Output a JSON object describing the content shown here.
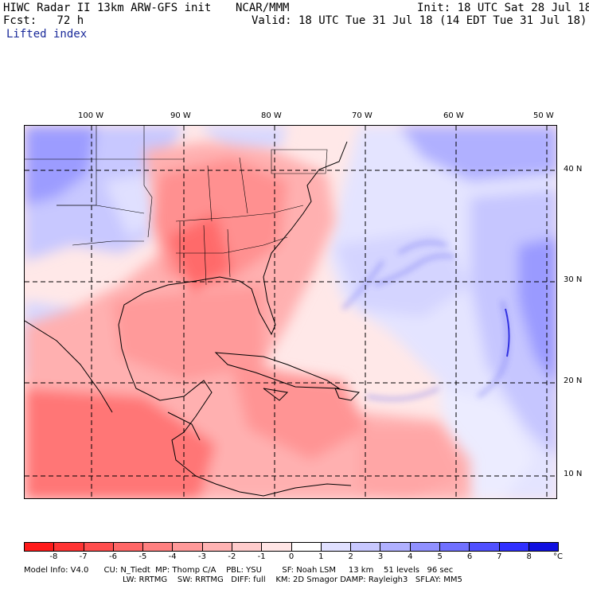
{
  "header": {
    "title_left": "HIWC Radar II 13km ARW-GFS init",
    "org": "NCAR/MMM",
    "init": "Init: 18 UTC Sat 28 Jul 18",
    "fcst": "Fcst:   72 h",
    "valid": "Valid: 18 UTC Tue 31 Jul 18 (14 EDT Tue 31 Jul 18)",
    "field": "Lifted index"
  },
  "map": {
    "lon_labels": [
      "100 W",
      "90 W",
      "80 W",
      "70 W",
      "60 W",
      "50 W"
    ],
    "lon_values": [
      100,
      90,
      80,
      70,
      60,
      50
    ],
    "lat_labels": [
      "40 N",
      "30 N",
      "20 N",
      "10 N"
    ],
    "lat_values": [
      40,
      30,
      20,
      10
    ]
  },
  "colorbar": {
    "ticks": [
      "-8",
      "-7",
      "-6",
      "-5",
      "-4",
      "-3",
      "-2",
      "-1",
      "0",
      "1",
      "2",
      "3",
      "4",
      "5",
      "6",
      "7",
      "8"
    ],
    "unit": "°C",
    "colors": [
      "#ff1a1a",
      "#ff3333",
      "#ff4d4d",
      "#ff6666",
      "#ff8080",
      "#ff9999",
      "#ffb3b3",
      "#ffcccc",
      "#ffe5e5",
      "#ffffff",
      "#e0e0ff",
      "#c8c8ff",
      "#b0b0ff",
      "#9090ff",
      "#7070ff",
      "#5050ff",
      "#3030ff",
      "#1010e0"
    ]
  },
  "footer": {
    "line1": "Model Info: V4.0      CU: N_Tiedt  MP: Thomp C/A    PBL: YSU        SF: Noah LSM     13 km    51 levels   96 sec",
    "line2": "LW: RRTMG    SW: RRTMG   DIFF: full    KM: 2D Smagor DAMP: Rayleigh3   SFLAY: MM5"
  }
}
